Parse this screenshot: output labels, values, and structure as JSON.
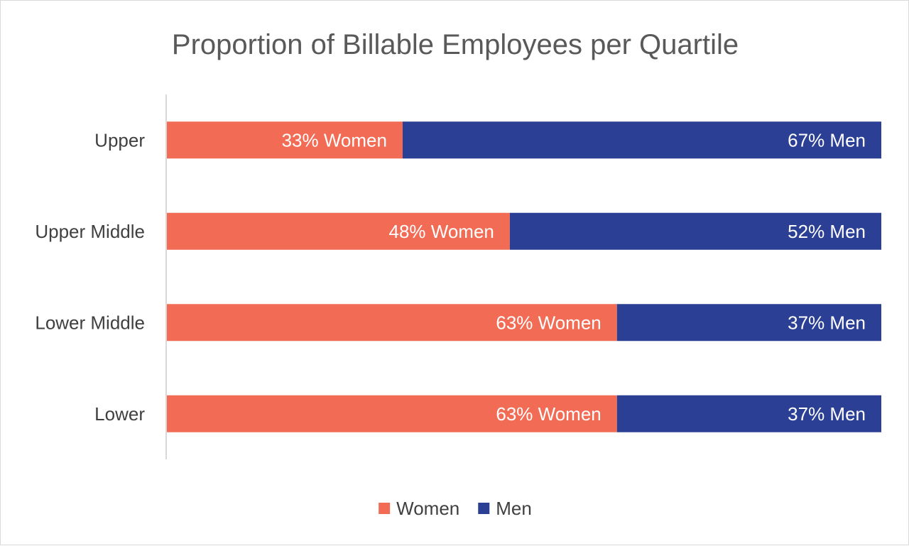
{
  "chart_data": {
    "type": "bar",
    "orientation": "horizontal",
    "stacked": true,
    "title": "Proportion of Billable Employees per Quartile",
    "categories": [
      "Upper",
      "Upper Middle",
      "Lower Middle",
      "Lower"
    ],
    "series": [
      {
        "name": "Women",
        "color": "#f26b55",
        "values": [
          33,
          48,
          63,
          63
        ],
        "labels": [
          "33% Women",
          "48% Women",
          "63% Women",
          "63% Women"
        ]
      },
      {
        "name": "Men",
        "color": "#2b3f94",
        "values": [
          67,
          52,
          37,
          37
        ],
        "labels": [
          "67% Men",
          "52% Men",
          "37% Men",
          "37% Men"
        ]
      }
    ],
    "xlim": [
      0,
      100
    ],
    "xlabel": "",
    "ylabel": "",
    "grid": false,
    "legend": {
      "position": "bottom",
      "entries": [
        "Women",
        "Men"
      ]
    }
  }
}
